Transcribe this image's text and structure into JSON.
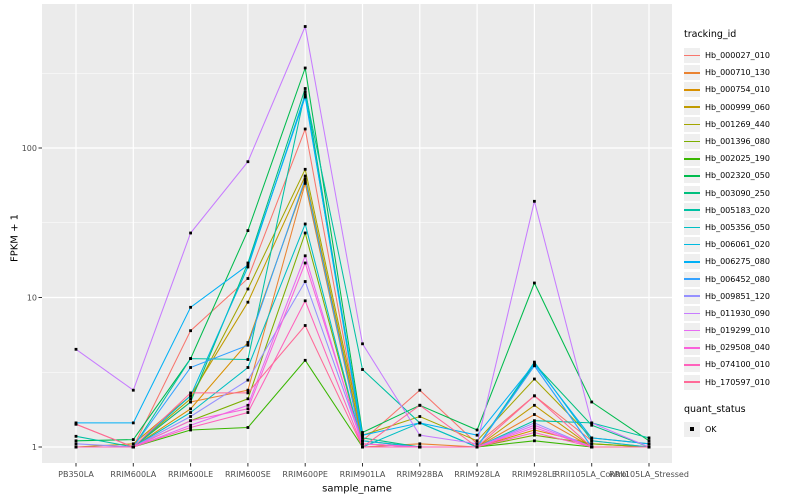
{
  "figure": {
    "y_axis": {
      "title": "FPKM + 1"
    },
    "x_axis": {
      "title": "sample_name"
    },
    "legend": {
      "title": "tracking_id"
    },
    "quant_legend": {
      "title": "quant_status",
      "items": [
        {
          "label": "OK"
        }
      ]
    },
    "style": {
      "panel_bg": "#EBEBEB",
      "grid": "#FFFFFF",
      "tick_text": "#4D4D4D",
      "tick_mark": "#333333",
      "point": "#000000",
      "key_bg": "#EFEFEF"
    }
  },
  "chart_data": {
    "type": "line",
    "title": "",
    "xlabel": "sample_name",
    "ylabel": "FPKM + 1",
    "y_scale": "log10",
    "y_ticks": [
      1,
      10,
      100
    ],
    "y_minor_breaks": [
      3.162,
      31.62,
      316.2
    ],
    "ylim": [
      0.93,
      920
    ],
    "grid": "white major and minor on gray panel",
    "legend_position": "right",
    "point_marker": "small black square (quant_status OK)",
    "categories": [
      "PB350LA",
      "RRIM600LA",
      "RRIM600LE",
      "RRIM600SE",
      "RRIM600PE",
      "RRIM901LA",
      "RRIM928BA",
      "RRIM928LA",
      "RRIM928LE",
      "RRII105LA_Control",
      "RRII105LA_Stressed"
    ],
    "series": [
      {
        "name": "Hb_000027_010",
        "color": "#F8766D",
        "values": [
          1.42,
          1.0,
          6.0,
          13.4,
          134,
          1.1,
          2.4,
          1.05,
          2.2,
          1.1,
          1.0
        ]
      },
      {
        "name": "Hb_000710_130",
        "color": "#EA8331",
        "values": [
          1.0,
          1.0,
          2.0,
          2.4,
          58,
          1.0,
          1.05,
          1.0,
          1.65,
          1.0,
          1.0
        ]
      },
      {
        "name": "Hb_000754_010",
        "color": "#D89000",
        "values": [
          1.0,
          1.0,
          1.8,
          5.0,
          60,
          1.05,
          1.0,
          1.0,
          1.3,
          1.05,
          1.0
        ]
      },
      {
        "name": "Hb_000999_060",
        "color": "#C09B00",
        "values": [
          1.0,
          1.05,
          2.2,
          9.3,
          65,
          1.1,
          1.0,
          1.0,
          1.9,
          1.0,
          1.0
        ]
      },
      {
        "name": "Hb_001269_440",
        "color": "#A3A500",
        "values": [
          1.0,
          1.0,
          2.1,
          11.4,
          72,
          1.2,
          1.6,
          1.1,
          2.85,
          1.15,
          1.05
        ]
      },
      {
        "name": "Hb_001396_080",
        "color": "#7CAE00",
        "values": [
          1.0,
          1.0,
          1.5,
          2.1,
          27,
          1.0,
          1.0,
          1.0,
          1.2,
          1.05,
          1.0
        ]
      },
      {
        "name": "Hb_002025_190",
        "color": "#39B600",
        "values": [
          1.0,
          1.0,
          1.3,
          1.35,
          3.8,
          1.0,
          1.0,
          1.0,
          1.1,
          1.0,
          1.0
        ]
      },
      {
        "name": "Hb_002320_050",
        "color": "#00BB4E",
        "values": [
          1.1,
          1.12,
          3.9,
          28,
          343,
          1.25,
          1.9,
          1.3,
          12.5,
          2.0,
          1.1
        ]
      },
      {
        "name": "Hb_003090_250",
        "color": "#00BF7D",
        "values": [
          1.0,
          1.0,
          2.0,
          17,
          250,
          1.15,
          1.0,
          1.0,
          3.6,
          1.4,
          1.0
        ]
      },
      {
        "name": "Hb_005183_020",
        "color": "#00C1A3",
        "values": [
          1.18,
          1.0,
          3.9,
          3.85,
          238,
          3.3,
          1.45,
          1.0,
          1.5,
          1.45,
          1.15
        ]
      },
      {
        "name": "Hb_005356_050",
        "color": "#00BFC4",
        "values": [
          1.0,
          1.0,
          1.7,
          3.4,
          31,
          1.0,
          1.45,
          1.0,
          3.7,
          1.1,
          1.0
        ]
      },
      {
        "name": "Hb_006061_020",
        "color": "#00BAE0",
        "values": [
          1.0,
          1.0,
          2.2,
          16,
          228,
          1.1,
          1.0,
          1.0,
          3.5,
          1.0,
          1.0
        ]
      },
      {
        "name": "Hb_006275_080",
        "color": "#00B0F6",
        "values": [
          1.45,
          1.45,
          8.6,
          16.5,
          219,
          1.2,
          1.45,
          1.2,
          3.6,
          1.15,
          1.05
        ]
      },
      {
        "name": "Hb_006452_080",
        "color": "#35A2FF",
        "values": [
          1.0,
          1.0,
          3.4,
          4.8,
          62,
          1.0,
          1.0,
          1.0,
          3.5,
          1.0,
          1.0
        ]
      },
      {
        "name": "Hb_009851_120",
        "color": "#9590FF",
        "values": [
          1.05,
          1.0,
          1.6,
          2.8,
          12.8,
          1.05,
          1.0,
          1.0,
          1.45,
          1.0,
          1.0
        ]
      },
      {
        "name": "Hb_011930_090",
        "color": "#C77CFF",
        "values": [
          4.5,
          2.4,
          27,
          81,
          650,
          4.9,
          1.2,
          1.05,
          44,
          1.45,
          1.0
        ]
      },
      {
        "name": "Hb_019299_010",
        "color": "#E76BF3",
        "values": [
          1.0,
          1.0,
          1.4,
          1.9,
          19,
          1.0,
          1.0,
          1.0,
          1.4,
          1.0,
          1.0
        ]
      },
      {
        "name": "Hb_029508_040",
        "color": "#FA62DB",
        "values": [
          1.0,
          1.0,
          1.5,
          1.8,
          17,
          1.05,
          1.0,
          1.0,
          1.35,
          1.0,
          1.0
        ]
      },
      {
        "name": "Hb_074100_010",
        "color": "#FF62BC",
        "values": [
          1.0,
          1.0,
          1.35,
          1.7,
          9.5,
          1.0,
          1.0,
          1.0,
          1.25,
          1.0,
          1.0
        ]
      },
      {
        "name": "Hb_170597_010",
        "color": "#FF6A98",
        "values": [
          1.42,
          1.0,
          2.3,
          2.3,
          6.5,
          1.0,
          1.9,
          1.0,
          2.2,
          1.0,
          1.0
        ]
      }
    ],
    "quant_status": {
      "title": "quant_status",
      "items": [
        "OK"
      ]
    }
  }
}
